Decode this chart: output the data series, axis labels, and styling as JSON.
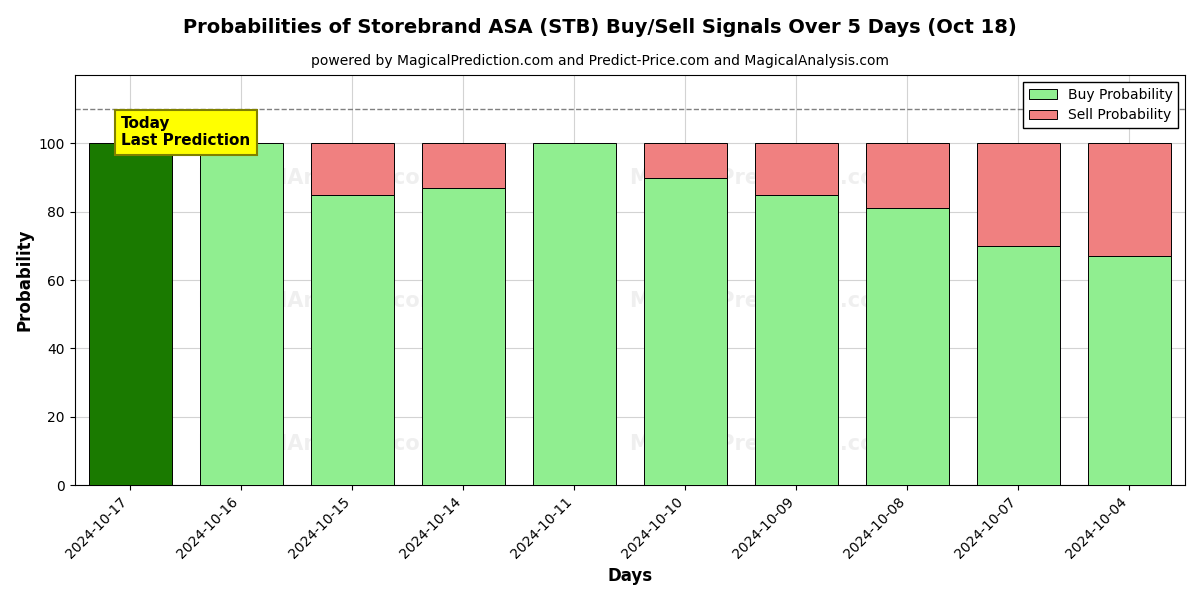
{
  "title": "Probabilities of Storebrand ASA (STB) Buy/Sell Signals Over 5 Days (Oct 18)",
  "subtitle": "powered by MagicalPrediction.com and Predict-Price.com and MagicalAnalysis.com",
  "xlabel": "Days",
  "ylabel": "Probability",
  "dates": [
    "2024-10-17",
    "2024-10-16",
    "2024-10-15",
    "2024-10-14",
    "2024-10-11",
    "2024-10-10",
    "2024-10-09",
    "2024-10-08",
    "2024-10-07",
    "2024-10-04"
  ],
  "buy_probs": [
    100,
    100,
    85,
    87,
    100,
    90,
    85,
    81,
    70,
    67
  ],
  "sell_probs": [
    0,
    0,
    15,
    13,
    0,
    10,
    15,
    19,
    30,
    33
  ],
  "buy_color_today": "#1a7a00",
  "buy_color_normal": "#90EE90",
  "sell_color": "#F08080",
  "today_label_bg": "#FFFF00",
  "today_label_text": "Today\nLast Prediction",
  "bar_edge_color": "#000000",
  "ylim": [
    0,
    120
  ],
  "yticks": [
    0,
    20,
    40,
    60,
    80,
    100
  ],
  "dashed_line_y": 110,
  "legend_buy": "Buy Probability",
  "legend_sell": "Sell Probability",
  "watermark_color": "lightgray",
  "bar_width": 0.75
}
